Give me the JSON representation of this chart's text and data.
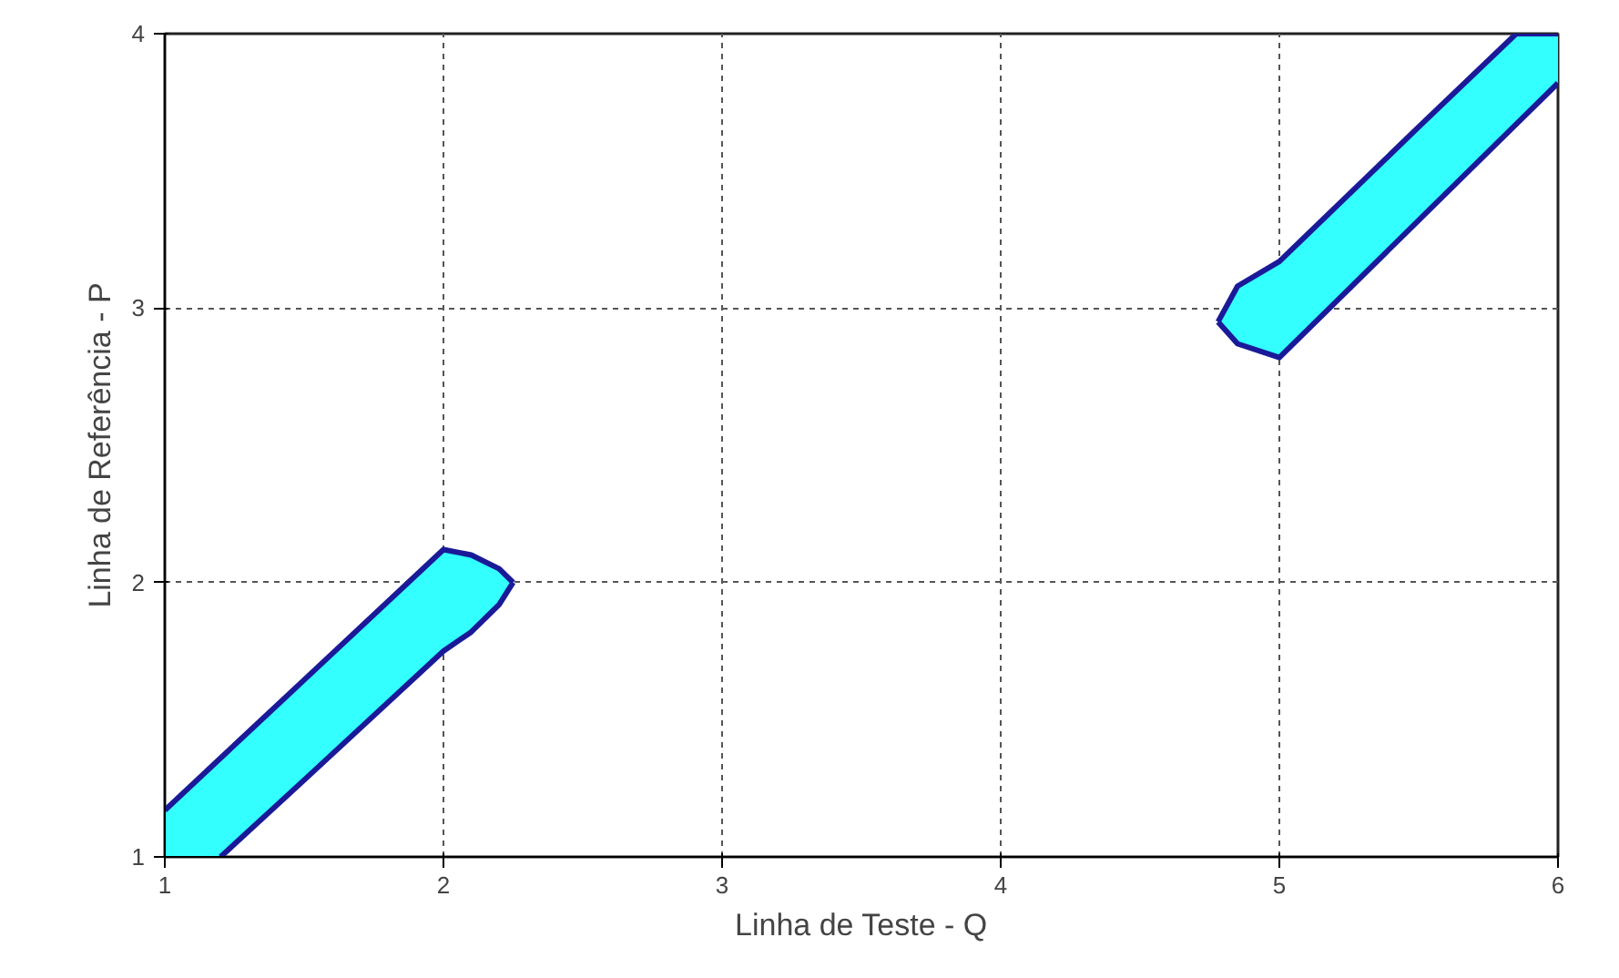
{
  "chart_data": {
    "type": "line",
    "xlabel": "Linha de Teste - Q",
    "ylabel": "Linha de Referência - P",
    "xlim": [
      1,
      6
    ],
    "ylim": [
      1,
      4
    ],
    "xticks": [
      1,
      2,
      3,
      4,
      5,
      6
    ],
    "yticks": [
      1,
      2,
      3,
      4
    ],
    "grid": true,
    "series": [
      {
        "color": "#1a1a99",
        "x": [
          1,
          1.2,
          1.5,
          2,
          2.1,
          2.2,
          2.25
        ],
        "values": [
          1.17,
          1.36,
          1.645,
          2.12,
          2.1,
          2.05,
          2.0
        ],
        "upper": [
          1.17,
          1.36,
          1.645,
          2.12,
          2.1,
          2.05,
          2.0
        ],
        "lower": [
          1.0,
          1.0,
          1.28,
          1.75,
          1.82,
          1.92,
          2.0
        ]
      },
      {
        "color": "#1a1a99",
        "x": [
          1.2,
          1.5,
          2,
          2.1,
          2.2,
          2.25
        ],
        "values": [
          1.0,
          1.28,
          1.75,
          1.82,
          1.92,
          2.0
        ]
      },
      {
        "color": "#1a1a99",
        "x": [
          4.78,
          4.85,
          5,
          5.5,
          5.85,
          6
        ],
        "values": [
          2.95,
          3.08,
          3.17,
          3.66,
          4.0,
          4.0
        ],
        "upper": [
          2.95,
          3.08,
          3.17,
          3.66,
          4.0,
          4.0
        ],
        "lower": [
          2.95,
          2.87,
          2.82,
          3.32,
          3.67,
          3.82
        ]
      },
      {
        "color": "#1a1a99",
        "x": [
          4.78,
          4.85,
          5,
          5.5,
          5.85,
          6
        ],
        "values": [
          2.95,
          2.87,
          2.82,
          3.32,
          3.67,
          3.82
        ]
      }
    ]
  }
}
